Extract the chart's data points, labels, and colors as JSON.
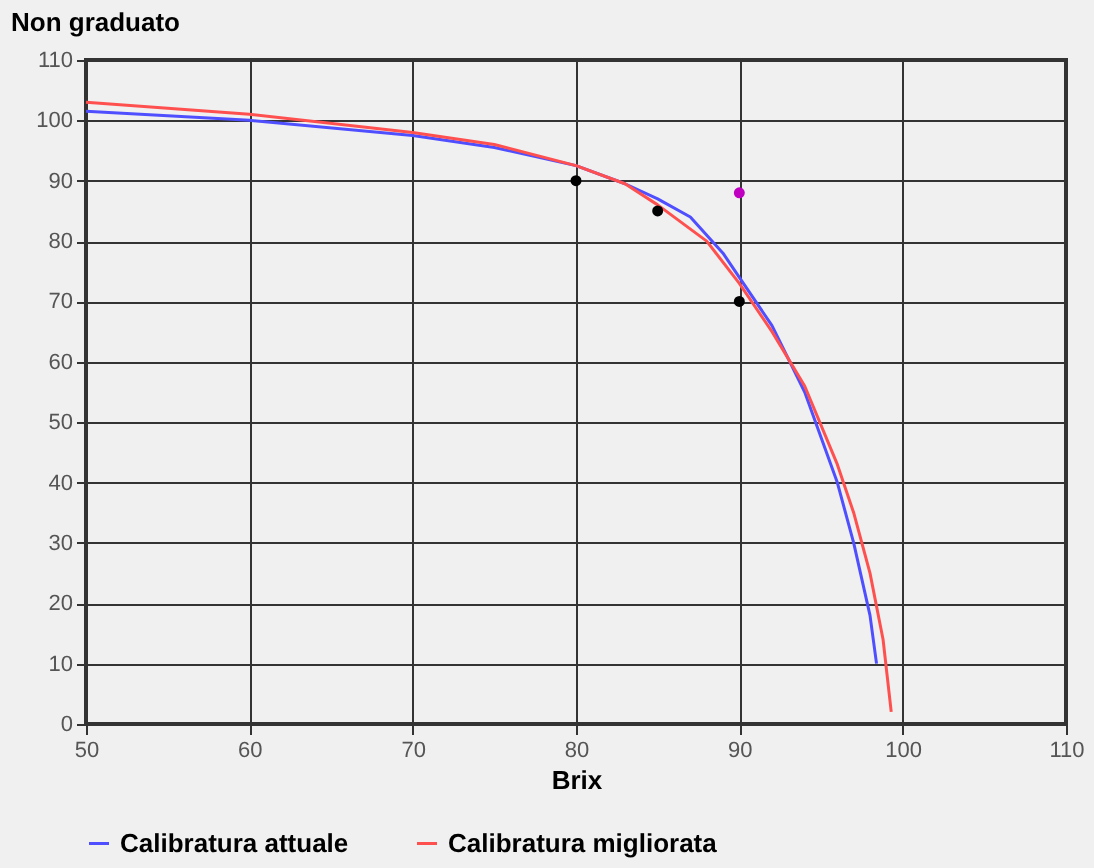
{
  "chart_data": {
    "type": "line",
    "ylabel": "Non graduato",
    "xlabel": "Brix",
    "xlim": [
      50,
      110
    ],
    "xticks": [
      50,
      60,
      70,
      80,
      90,
      100,
      110
    ],
    "ylim": [
      0,
      110
    ],
    "yticks": [
      0,
      10,
      20,
      30,
      40,
      50,
      60,
      70,
      80,
      90,
      100,
      110
    ],
    "grid": true,
    "legend": "bottom",
    "line_style": "solid",
    "series": [
      {
        "name": "Calibratura attuale",
        "color": "#4f4fff",
        "x": [
          50,
          60,
          70,
          75,
          80,
          83,
          85,
          87,
          89,
          90,
          92,
          94,
          96,
          97,
          98,
          98.4
        ],
        "values": [
          101.5,
          100,
          97.5,
          95.5,
          92.5,
          89.5,
          87,
          84,
          78,
          74,
          66,
          55,
          40,
          30,
          18,
          10
        ]
      },
      {
        "name": "Calibratura migliorata",
        "color": "#ff5050",
        "x": [
          50,
          60,
          70,
          75,
          80,
          83,
          85,
          88,
          90,
          92,
          94,
          96,
          97,
          98,
          98.8,
          99.3
        ],
        "values": [
          103,
          101,
          98,
          96,
          92.5,
          89.5,
          86,
          80,
          73,
          65,
          56,
          43,
          35,
          25,
          14,
          2
        ]
      },
      {
        "type": "scatter",
        "marker": "circle",
        "color": "#000000",
        "x": [
          80,
          85,
          90
        ],
        "values": [
          90,
          85,
          70
        ]
      },
      {
        "type": "scatter",
        "marker": "circle",
        "color": "#c000c0",
        "x": [
          90
        ],
        "values": [
          88
        ]
      }
    ]
  }
}
